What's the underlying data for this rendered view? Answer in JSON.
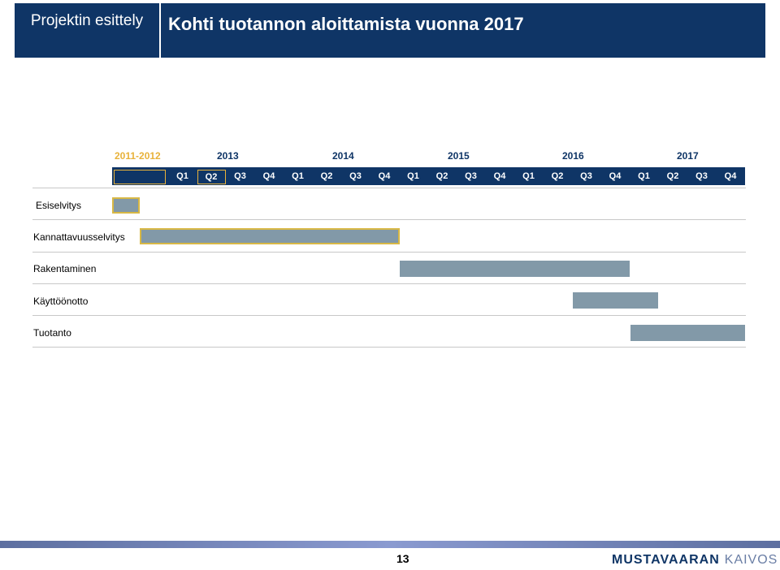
{
  "header": {
    "section_title": "Projektin esittely",
    "slide_title": "Kohti tuotannon aloittamista vuonna 2017"
  },
  "timeline": {
    "years": [
      "2011-2012",
      "2013",
      "2014",
      "2015",
      "2016",
      "2017"
    ],
    "quarters": [
      "Q1",
      "Q2",
      "Q3",
      "Q4",
      "Q1",
      "Q2",
      "Q3",
      "Q4",
      "Q1",
      "Q2",
      "Q3",
      "Q4",
      "Q1",
      "Q2",
      "Q3",
      "Q4",
      "Q1",
      "Q2",
      "Q3",
      "Q4"
    ]
  },
  "phases": [
    {
      "label": "Esiselvitys"
    },
    {
      "label": "Kannattavuusselvitys"
    },
    {
      "label": "Rakentaminen"
    },
    {
      "label": "Käyttöönotto"
    },
    {
      "label": "Tuotanto"
    }
  ],
  "colors": {
    "header_bg": "#0f3566",
    "accent_gold": "#e8b23a",
    "bar_gray": "#8299a8"
  },
  "footer": {
    "page_number": "13",
    "logo_bold": "MUSTAVAARAN",
    "logo_light": "KAIVOS"
  }
}
